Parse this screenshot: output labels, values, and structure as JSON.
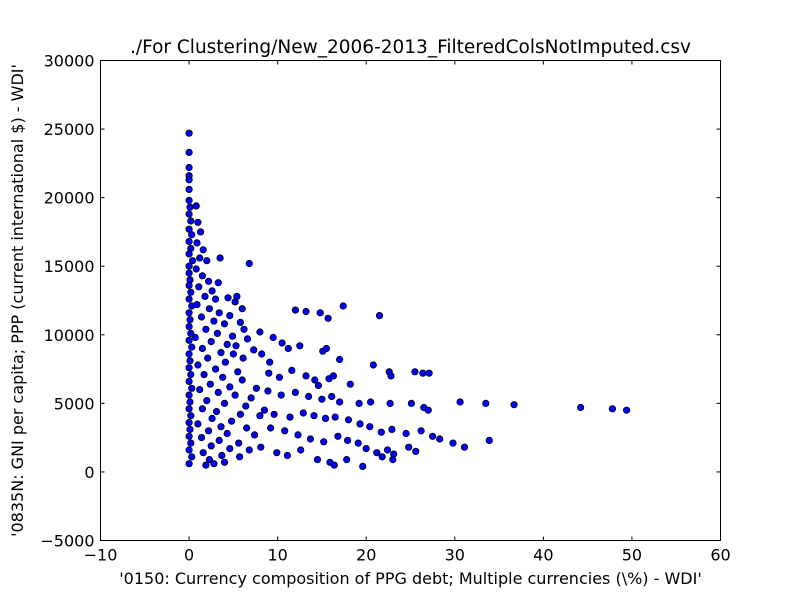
{
  "chart_data": {
    "type": "scatter",
    "title": "./For Clustering/New_2006-2013_FilteredColsNotImputed.csv",
    "xlabel": "'0150: Currency composition of PPG debt; Multiple currencies  (\\%) - WDI'",
    "ylabel": "'0835N: GNI per capita; PPP  (current international $) - WDI'",
    "xlim": [
      -10,
      60
    ],
    "ylim": [
      -5000,
      30000
    ],
    "xticks": [
      -10,
      0,
      10,
      20,
      30,
      40,
      50,
      60
    ],
    "xtick_labels": [
      "−10",
      "0",
      "10",
      "20",
      "30",
      "40",
      "50",
      "60"
    ],
    "yticks": [
      -5000,
      0,
      5000,
      10000,
      15000,
      20000,
      25000,
      30000
    ],
    "ytick_labels": [
      "−5000",
      "0",
      "5000",
      "10000",
      "15000",
      "20000",
      "25000",
      "30000"
    ],
    "grid": false,
    "marker_color": "#0000ff",
    "marker_edge": "#000000",
    "points": [
      [
        0,
        24700
      ],
      [
        0,
        23300
      ],
      [
        0,
        22200
      ],
      [
        0,
        21600
      ],
      [
        0,
        21300
      ],
      [
        0,
        20600
      ],
      [
        0,
        19800
      ],
      [
        0.1,
        19300
      ],
      [
        0,
        18800
      ],
      [
        0.2,
        18300
      ],
      [
        0,
        17700
      ],
      [
        0.3,
        17300
      ],
      [
        0,
        16800
      ],
      [
        0.2,
        16300
      ],
      [
        0,
        15900
      ],
      [
        0.4,
        15400
      ],
      [
        0,
        15000
      ],
      [
        0,
        14500
      ],
      [
        0.1,
        14000
      ],
      [
        0,
        13600
      ],
      [
        0.2,
        13100
      ],
      [
        0,
        12600
      ],
      [
        0.3,
        12100
      ],
      [
        0,
        11600
      ],
      [
        0.1,
        11100
      ],
      [
        0,
        10600
      ],
      [
        0.2,
        10100
      ],
      [
        0,
        9600
      ],
      [
        0.3,
        9100
      ],
      [
        0,
        8600
      ],
      [
        0.1,
        8100
      ],
      [
        0,
        7600
      ],
      [
        0.2,
        7100
      ],
      [
        0,
        6600
      ],
      [
        0.3,
        6100
      ],
      [
        0,
        5600
      ],
      [
        0.1,
        5100
      ],
      [
        0,
        4600
      ],
      [
        0.2,
        4100
      ],
      [
        0,
        3600
      ],
      [
        0.1,
        3100
      ],
      [
        0,
        2600
      ],
      [
        0.2,
        2100
      ],
      [
        0,
        1600
      ],
      [
        0.3,
        1100
      ],
      [
        0,
        600
      ],
      [
        0.8,
        19400
      ],
      [
        1,
        18200
      ],
      [
        1.3,
        17500
      ],
      [
        0.9,
        16700
      ],
      [
        1.6,
        16200
      ],
      [
        1.2,
        15600
      ],
      [
        2,
        15400
      ],
      [
        0.8,
        14800
      ],
      [
        1.5,
        14300
      ],
      [
        2.2,
        13900
      ],
      [
        1.1,
        13500
      ],
      [
        2.6,
        13200
      ],
      [
        1.8,
        12800
      ],
      [
        3,
        12600
      ],
      [
        0.9,
        12200
      ],
      [
        2.3,
        11900
      ],
      [
        3.4,
        11600
      ],
      [
        1.4,
        11300
      ],
      [
        2.8,
        11000
      ],
      [
        4,
        10800
      ],
      [
        1.9,
        10400
      ],
      [
        3.2,
        10100
      ],
      [
        0.7,
        9800
      ],
      [
        2.5,
        9500
      ],
      [
        4.3,
        9300
      ],
      [
        1.5,
        9000
      ],
      [
        3.6,
        8700
      ],
      [
        5,
        8600
      ],
      [
        2.1,
        8300
      ],
      [
        4.1,
        8000
      ],
      [
        1,
        7800
      ],
      [
        3,
        7500
      ],
      [
        5.5,
        7300
      ],
      [
        1.7,
        7100
      ],
      [
        3.8,
        6900
      ],
      [
        6,
        6700
      ],
      [
        2.4,
        6400
      ],
      [
        4.6,
        6200
      ],
      [
        1.2,
        6000
      ],
      [
        3.3,
        5800
      ],
      [
        5.2,
        5600
      ],
      [
        7,
        5400
      ],
      [
        2,
        5200
      ],
      [
        4,
        5000
      ],
      [
        6.4,
        4800
      ],
      [
        1.5,
        4600
      ],
      [
        3.1,
        4400
      ],
      [
        5.8,
        4200
      ],
      [
        8,
        4100
      ],
      [
        2.6,
        3900
      ],
      [
        4.8,
        3700
      ],
      [
        1,
        3500
      ],
      [
        3.6,
        3300
      ],
      [
        6.5,
        3200
      ],
      [
        2.2,
        3000
      ],
      [
        4.3,
        2800
      ],
      [
        7.4,
        2700
      ],
      [
        1.4,
        2500
      ],
      [
        3.4,
        2300
      ],
      [
        5.6,
        2100
      ],
      [
        2.5,
        1900
      ],
      [
        4.6,
        1700
      ],
      [
        6.8,
        1600
      ],
      [
        1.6,
        1400
      ],
      [
        3.7,
        1200
      ],
      [
        5.7,
        1100
      ],
      [
        2.3,
        900
      ],
      [
        4,
        700
      ],
      [
        2.8,
        600
      ],
      [
        1.9,
        500
      ],
      [
        3.5,
        15600
      ],
      [
        3.3,
        13800
      ],
      [
        4.4,
        12700
      ],
      [
        5.2,
        12400
      ],
      [
        5.4,
        12800
      ],
      [
        6,
        11900
      ],
      [
        4.6,
        11400
      ],
      [
        5.8,
        10900
      ],
      [
        6.2,
        10400
      ],
      [
        4.9,
        9900
      ],
      [
        6.6,
        9700
      ],
      [
        5.3,
        9200
      ],
      [
        7.3,
        8900
      ],
      [
        6.1,
        8300
      ],
      [
        6.8,
        15200
      ],
      [
        8,
        10200
      ],
      [
        9.5,
        9800
      ],
      [
        10.5,
        9400
      ],
      [
        12,
        11800
      ],
      [
        13.2,
        11700
      ],
      [
        14.8,
        11600
      ],
      [
        15.7,
        11200
      ],
      [
        17.4,
        12100
      ],
      [
        21.5,
        11400
      ],
      [
        8.2,
        8600
      ],
      [
        9.1,
        8000
      ],
      [
        11.2,
        9000
      ],
      [
        12.5,
        9200
      ],
      [
        15.1,
        8800
      ],
      [
        15.5,
        9000
      ],
      [
        17,
        8200
      ],
      [
        20.8,
        7800
      ],
      [
        22.6,
        7300
      ],
      [
        22.8,
        7000
      ],
      [
        25.5,
        7300
      ],
      [
        26.4,
        7200
      ],
      [
        27.1,
        7200
      ],
      [
        9,
        7200
      ],
      [
        10.2,
        6900
      ],
      [
        11.6,
        7400
      ],
      [
        13.2,
        7000
      ],
      [
        14.2,
        6700
      ],
      [
        14.6,
        6300
      ],
      [
        15.8,
        6800
      ],
      [
        16.3,
        7000
      ],
      [
        18.2,
        6400
      ],
      [
        7.6,
        6100
      ],
      [
        8.9,
        5900
      ],
      [
        10.4,
        5600
      ],
      [
        12,
        5800
      ],
      [
        13.5,
        5500
      ],
      [
        15,
        5300
      ],
      [
        16.1,
        5500
      ],
      [
        17,
        5100
      ],
      [
        19.2,
        5000
      ],
      [
        20.5,
        5100
      ],
      [
        22.7,
        5000
      ],
      [
        25.1,
        5000
      ],
      [
        26.5,
        4700
      ],
      [
        27,
        4500
      ],
      [
        30.6,
        5100
      ],
      [
        33.5,
        5000
      ],
      [
        36.7,
        4900
      ],
      [
        44.2,
        4700
      ],
      [
        47.8,
        4600
      ],
      [
        49.4,
        4500
      ],
      [
        8.5,
        4500
      ],
      [
        9.6,
        4200
      ],
      [
        11.4,
        4000
      ],
      [
        12.9,
        4300
      ],
      [
        14.1,
        4100
      ],
      [
        15.4,
        3900
      ],
      [
        16.5,
        4000
      ],
      [
        18,
        3800
      ],
      [
        19.3,
        3500
      ],
      [
        20.4,
        3300
      ],
      [
        21.7,
        2900
      ],
      [
        22.9,
        3100
      ],
      [
        24.5,
        2800
      ],
      [
        26.2,
        3000
      ],
      [
        27.5,
        2600
      ],
      [
        28.3,
        2400
      ],
      [
        29.8,
        2100
      ],
      [
        31.1,
        1800
      ],
      [
        33.9,
        2300
      ],
      [
        9.2,
        3200
      ],
      [
        10.8,
        3000
      ],
      [
        12.3,
        2700
      ],
      [
        13.7,
        2400
      ],
      [
        15.2,
        2200
      ],
      [
        16.8,
        2600
      ],
      [
        17.9,
        2300
      ],
      [
        19.1,
        2100
      ],
      [
        20,
        1700
      ],
      [
        21.2,
        1400
      ],
      [
        22.4,
        1600
      ],
      [
        23.1,
        1300
      ],
      [
        24.8,
        1800
      ],
      [
        25.6,
        1500
      ],
      [
        8.1,
        1800
      ],
      [
        9.9,
        1400
      ],
      [
        11.1,
        1200
      ],
      [
        12.6,
        1600
      ],
      [
        14.5,
        900
      ],
      [
        15.9,
        700
      ],
      [
        16.4,
        500
      ],
      [
        17.8,
        900
      ],
      [
        19.6,
        400
      ],
      [
        21.8,
        1100
      ],
      [
        23,
        900
      ]
    ]
  }
}
